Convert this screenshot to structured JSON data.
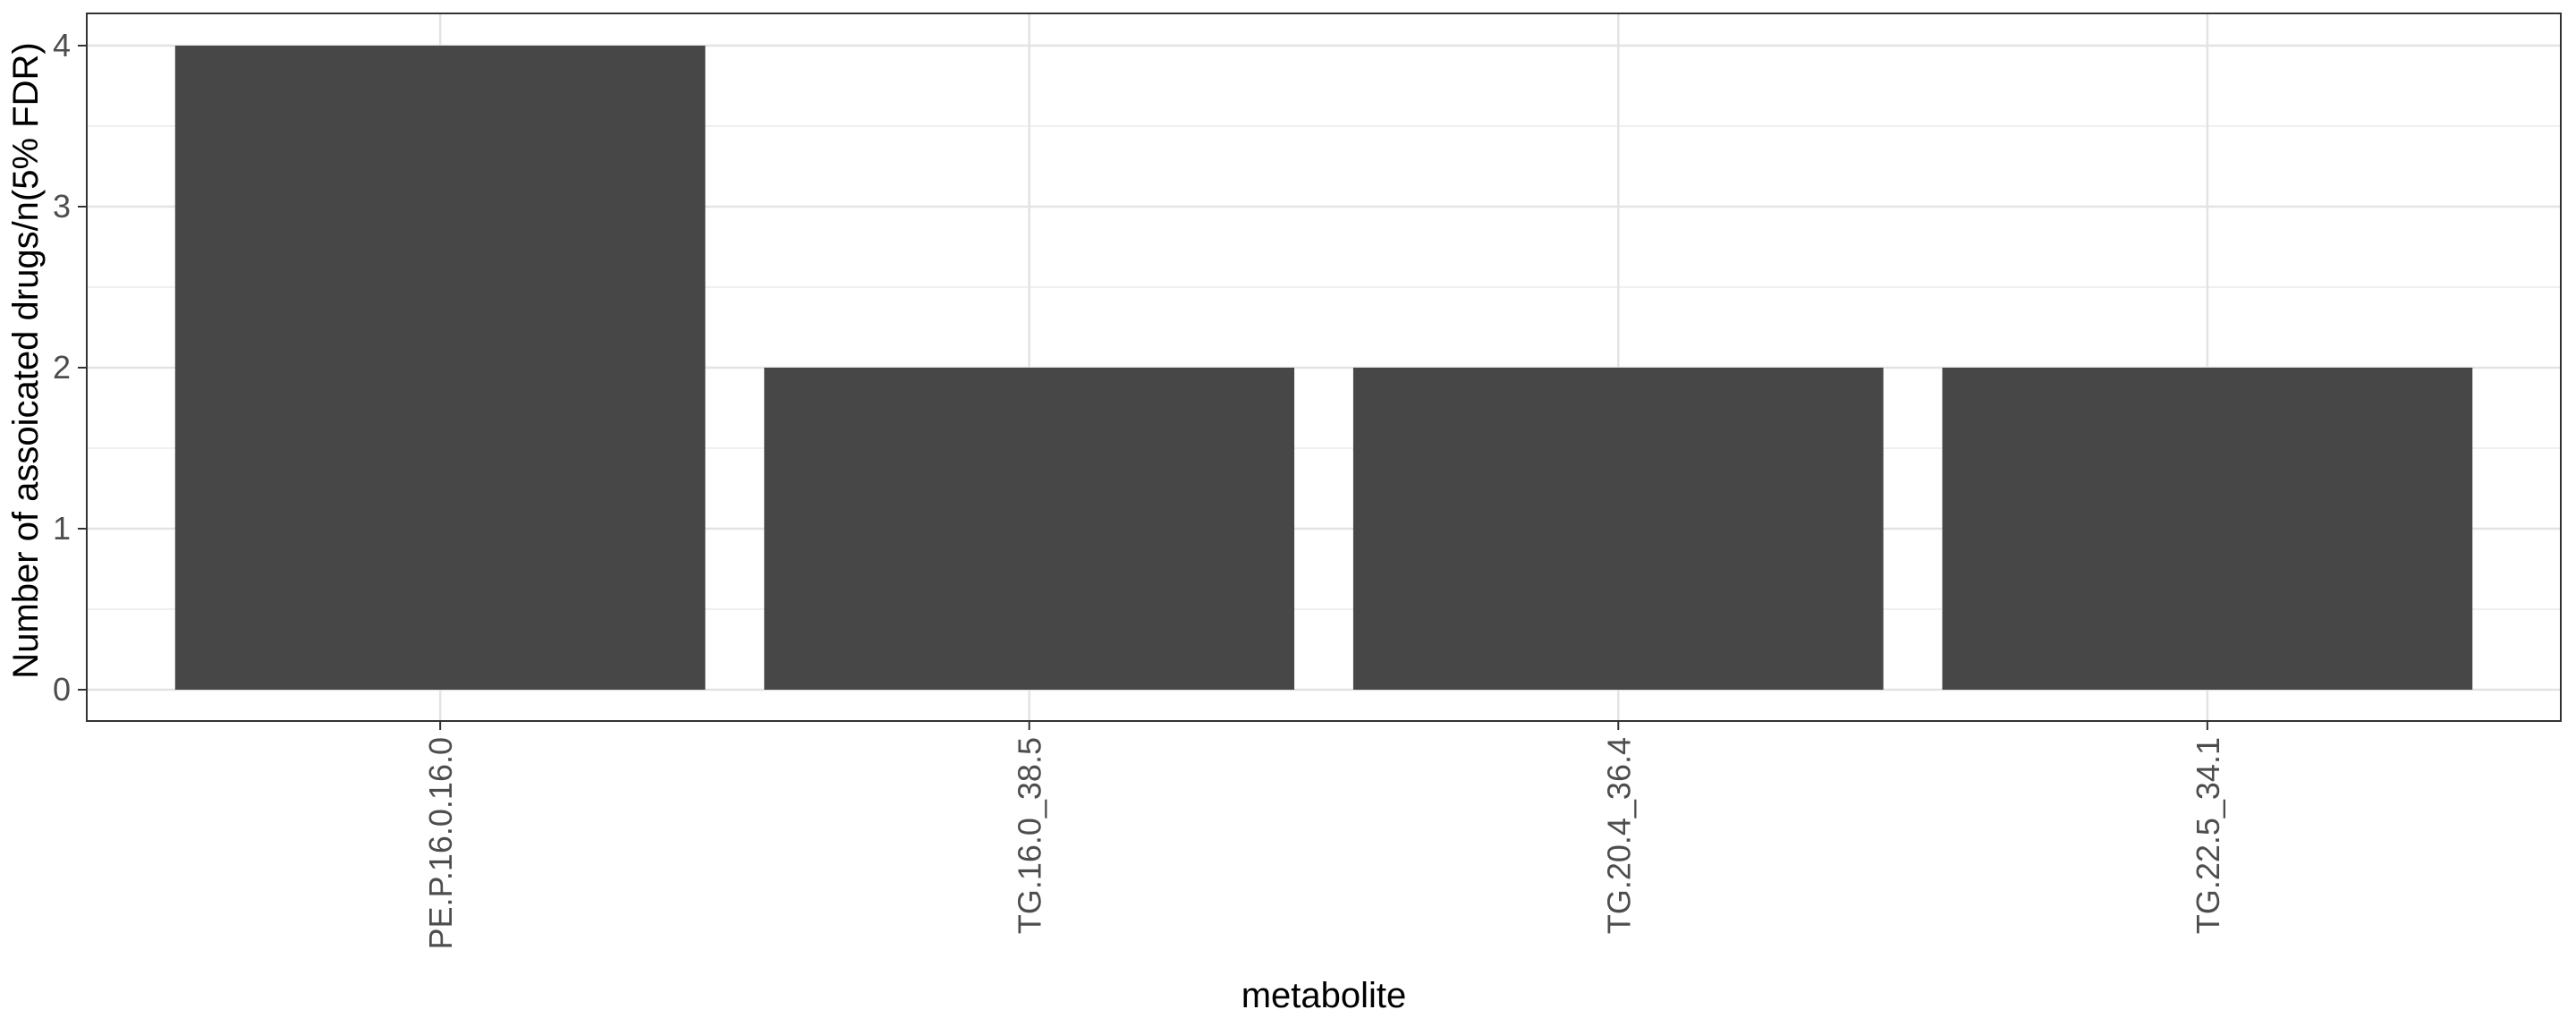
{
  "chart_data": {
    "type": "bar",
    "title": "",
    "xlabel": "metabolite",
    "ylabel": "Number of assoicated drugs/n(5% FDR)",
    "categories": [
      "PE.P.16.0.16.0",
      "TG.16.0_38.5",
      "TG.20.4_36.4",
      "TG.22.5_34.1"
    ],
    "values": [
      4,
      2,
      2,
      2
    ],
    "ylim": [
      0,
      4.2
    ],
    "yticks": [
      "0",
      "1",
      "2",
      "3",
      "4"
    ],
    "grid": true,
    "x_tick_rotation": "vertical",
    "legend": "none"
  },
  "colors": {
    "bar": "#474747",
    "grid_major": "#e3e3e3",
    "grid_minor": "#f0f0f0",
    "panel_border": "#333333",
    "tick_text": "#4d4d4d"
  }
}
